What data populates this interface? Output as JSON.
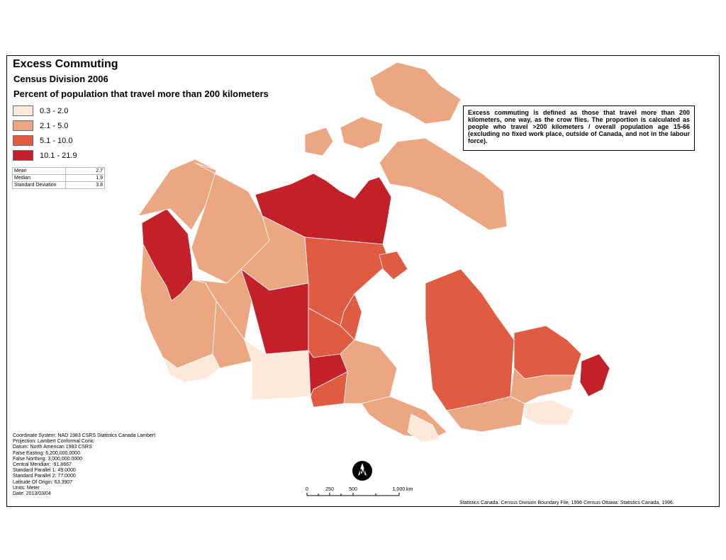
{
  "title": "Excess Commuting",
  "subtitle": "Census Division 2006",
  "legend": {
    "title": "Percent of population that travel more than 200 kilometers",
    "items": [
      {
        "label": "0.3 - 2.0",
        "color": "#fde9d9"
      },
      {
        "label": "2.1 - 5.0",
        "color": "#eaa782"
      },
      {
        "label": "5.1 - 10.0",
        "color": "#df5b42"
      },
      {
        "label": "10.1 - 21.9",
        "color": "#c4202a"
      }
    ]
  },
  "stats": [
    {
      "label": "Mean",
      "value": "2.7"
    },
    {
      "label": "Median",
      "value": "1.9"
    },
    {
      "label": "Standard Deviation",
      "value": "3.8"
    }
  ],
  "note": "Excess commuting is defined as those that travel more than 200 kilometers, one way, as the crow flies. The proportion is calculated as people who travel >200 kilometers / overall population age 15-66 (excluding no fixed work place, outside of Canada, and not in the labour force).",
  "metadata": [
    "Coordinate System: NAD 1983 CSRS Statistics Canada Lambert",
    "Projection: Lambert Conformal Conic",
    "Datum: North American 1983 CSRS",
    "False Easting: 6,200,000.0000",
    "False Northing: 3,000,000.0000",
    "Central Meridian: -91.8667",
    "Standard Parallel 1: 49.0000",
    "Standard Parallel 2: 77.0000",
    "Latitude Of Origin: 63.3907",
    "Units: Meter",
    "Date: 2013/03/04"
  ],
  "scale": {
    "labels": [
      "0",
      "250",
      "500",
      "1,000 km"
    ]
  },
  "north_label": "N",
  "source": "Statistics Canada. Census Division Boundary File, 1996 Census Ottawa: Statistics Canada, 1996.",
  "colors": {
    "c1": "#fde9d9",
    "c2": "#eaa782",
    "c3": "#df5b42",
    "c4": "#c4202a",
    "border": "#ffffff",
    "water": "#ffffff"
  }
}
